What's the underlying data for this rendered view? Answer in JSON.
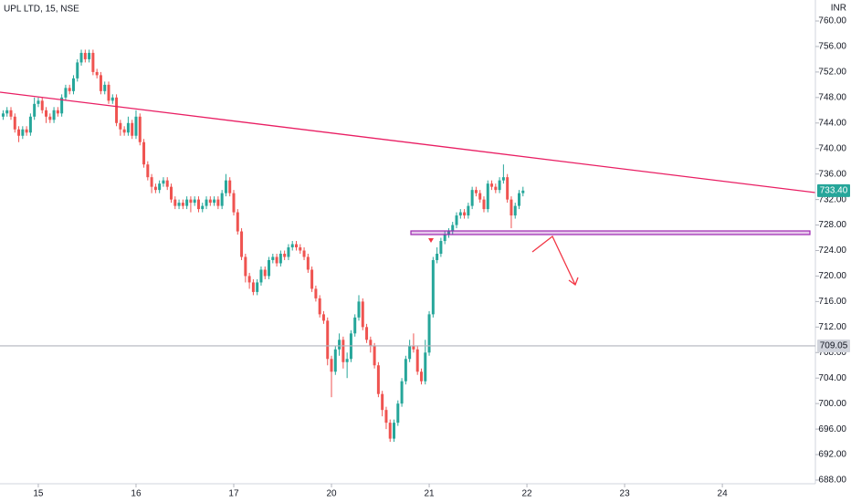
{
  "chart_data": {
    "type": "candlestick",
    "title": "UPL LTD, 15, NSE",
    "currency": "INR",
    "up_color": "#26a69a",
    "down_color": "#ef5350",
    "xlim": [
      -9.8,
      198.8
    ],
    "xticks": [
      {
        "value": 0,
        "label": "15"
      },
      {
        "value": 25,
        "label": "16"
      },
      {
        "value": 50,
        "label": "17"
      },
      {
        "value": 75,
        "label": "20"
      },
      {
        "value": 100,
        "label": "21"
      },
      {
        "value": 125,
        "label": "22"
      },
      {
        "value": 150,
        "label": "23"
      },
      {
        "value": 175,
        "label": "24"
      }
    ],
    "ylim": [
      688,
      760
    ],
    "yticks": [
      {
        "value": 688,
        "label": "688.00"
      },
      {
        "value": 692,
        "label": "692.00"
      },
      {
        "value": 696,
        "label": "696.00"
      },
      {
        "value": 700,
        "label": "700.00"
      },
      {
        "value": 704,
        "label": "704.00"
      },
      {
        "value": 708,
        "label": "708.00"
      },
      {
        "value": 712,
        "label": "712.00"
      },
      {
        "value": 716,
        "label": "716.00"
      },
      {
        "value": 720,
        "label": "720.00"
      },
      {
        "value": 724,
        "label": "724.00"
      },
      {
        "value": 728,
        "label": "728.00"
      },
      {
        "value": 732,
        "label": "732.00"
      },
      {
        "value": 736,
        "label": "736.00"
      },
      {
        "value": 740,
        "label": "740.00"
      },
      {
        "value": 744,
        "label": "744.00"
      },
      {
        "value": 748,
        "label": "748.00"
      },
      {
        "value": 752,
        "label": "752.00"
      },
      {
        "value": 756,
        "label": "756.00"
      },
      {
        "value": 760,
        "label": "760.00"
      }
    ],
    "last_price": {
      "value": 733.4,
      "label": "733.40"
    },
    "horizontal_line": {
      "value": 709.05,
      "label": "709.05"
    },
    "x": [
      -9,
      -8,
      -7,
      -6,
      -5,
      -4,
      -3,
      -2,
      -1,
      0,
      1,
      2,
      3,
      4,
      5,
      6,
      7,
      8,
      9,
      10,
      11,
      12,
      13,
      14,
      15,
      16,
      17,
      18,
      19,
      20,
      21,
      22,
      23,
      24,
      25,
      26,
      27,
      28,
      29,
      30,
      31,
      32,
      33,
      34,
      35,
      36,
      37,
      38,
      39,
      40,
      41,
      42,
      43,
      44,
      45,
      46,
      47,
      48,
      49,
      50,
      51,
      52,
      53,
      54,
      55,
      56,
      57,
      58,
      59,
      60,
      61,
      62,
      63,
      64,
      65,
      66,
      67,
      68,
      69,
      70,
      71,
      72,
      73,
      74,
      75,
      76,
      77,
      78,
      79,
      80,
      81,
      82,
      83,
      84,
      85,
      86,
      87,
      88,
      89,
      90,
      91,
      92,
      93,
      94,
      95,
      96,
      97,
      98,
      99,
      100,
      101,
      102,
      103,
      104,
      105,
      106,
      107,
      108,
      109,
      110,
      111,
      112,
      113,
      114,
      115,
      116,
      117,
      118,
      119,
      120,
      121,
      122,
      123,
      124
    ],
    "open": [
      745,
      745.5,
      746,
      745,
      743,
      742,
      743,
      742.5,
      745,
      747,
      747.5,
      746,
      745,
      744.5,
      746,
      745.5,
      748,
      749.5,
      749,
      751,
      753.5,
      755,
      754,
      755,
      752,
      751.5,
      749,
      750,
      747.5,
      748,
      744,
      743,
      742.5,
      744,
      742,
      745,
      741,
      737.5,
      735.5,
      734,
      733.5,
      734.5,
      735,
      734,
      732,
      731,
      731.5,
      731,
      732,
      731.5,
      732,
      730.5,
      731,
      732,
      731.5,
      732,
      731,
      733,
      735,
      733,
      730,
      727,
      723,
      720,
      719,
      717.5,
      719,
      721,
      720,
      722.5,
      723,
      722,
      723.5,
      723,
      724.5,
      725,
      724.5,
      724,
      723,
      721,
      718,
      716.5,
      714,
      713,
      707,
      705,
      708.5,
      710,
      706.5,
      707,
      711,
      713.5,
      716,
      712,
      710,
      709,
      706,
      701.5,
      699,
      697,
      694.5,
      697,
      700,
      703.5,
      707,
      709,
      708.5,
      705,
      703.5,
      708,
      714,
      722.5,
      723.5,
      725.5,
      726.5,
      727,
      728,
      729.5,
      730,
      729.5,
      731,
      733.5,
      733,
      732,
      730.5,
      734.5,
      734,
      733.5,
      735,
      735.5,
      732,
      729.5,
      731,
      733
    ],
    "high": [
      746,
      746.5,
      746.5,
      745.5,
      743.5,
      743.5,
      743.5,
      745.5,
      748,
      748,
      748,
      746.5,
      745.5,
      746.5,
      746.5,
      748.5,
      750,
      750,
      751.5,
      754,
      755.5,
      755.5,
      755.5,
      755.5,
      752.5,
      752,
      750.5,
      750.5,
      748.5,
      748.5,
      744.5,
      743.5,
      745,
      744.5,
      746,
      745.5,
      741.5,
      738,
      736,
      734.5,
      735,
      735.5,
      735.5,
      734.5,
      732.5,
      732,
      732,
      732.5,
      732.5,
      732.5,
      732.5,
      731.5,
      732.5,
      732.5,
      732.5,
      732.5,
      733.5,
      736,
      735.5,
      733.5,
      730.5,
      727.5,
      723.5,
      720.5,
      719.5,
      719.5,
      721.5,
      721.5,
      723,
      723.5,
      723.5,
      724,
      724,
      725,
      725.5,
      725.5,
      725,
      724.5,
      723.5,
      721.5,
      718.5,
      717,
      714.5,
      713.5,
      707.5,
      709,
      711,
      710.5,
      708,
      711.5,
      714,
      717,
      716.5,
      712.5,
      710.5,
      709.5,
      706.5,
      702,
      699.5,
      697.5,
      697.5,
      700.5,
      704,
      707.5,
      710,
      711,
      709,
      705.5,
      710,
      714.5,
      723,
      724.5,
      726,
      727,
      727.5,
      728.5,
      730,
      730.5,
      730.5,
      731.5,
      734,
      734,
      733.5,
      732.5,
      735,
      735,
      734.5,
      735.5,
      737.5,
      736,
      732.5,
      731.5,
      733.5,
      734
    ],
    "low": [
      744.5,
      745,
      744.5,
      742.5,
      741,
      741.5,
      742,
      742,
      744.5,
      746.5,
      745.5,
      744,
      744,
      744,
      745,
      745,
      747.5,
      748.5,
      748.5,
      750.5,
      753,
      753.5,
      753.5,
      751.5,
      751,
      748.5,
      748.5,
      747,
      747,
      743.5,
      742,
      742,
      742,
      741.5,
      741.5,
      740.5,
      737,
      735,
      733,
      733,
      733,
      734,
      733.5,
      731.5,
      730.5,
      730.5,
      730.5,
      730.5,
      730,
      731,
      730,
      730,
      730.5,
      731,
      731,
      730.5,
      730.5,
      732.5,
      732.5,
      729.5,
      726.5,
      722.5,
      719,
      718,
      717,
      717,
      718.5,
      719.5,
      719.5,
      722,
      721.5,
      721.5,
      722.5,
      722.5,
      724,
      724,
      723.5,
      722.5,
      720.5,
      717.5,
      716,
      713.5,
      712.5,
      706,
      701,
      704.5,
      707.5,
      705.5,
      704,
      706.5,
      710.5,
      713,
      711.5,
      709.5,
      708,
      705.5,
      701,
      698,
      696,
      694,
      694,
      696.5,
      699.5,
      703,
      706.5,
      708,
      704.5,
      703,
      703,
      707.5,
      713.5,
      722,
      723,
      725,
      726,
      726.5,
      727.5,
      729,
      729,
      729,
      730.5,
      732.5,
      731.5,
      730,
      730,
      733.5,
      733,
      733,
      734.5,
      731.5,
      727.5,
      729,
      730.5,
      732.5
    ],
    "close": [
      745.5,
      746,
      745,
      743,
      742,
      743,
      742.5,
      745,
      747,
      747.5,
      746,
      745,
      744.5,
      746,
      745.5,
      748,
      749.5,
      749,
      751,
      753.5,
      755,
      754,
      755,
      752,
      751.5,
      749,
      750,
      747.5,
      748,
      744,
      743,
      742.5,
      744,
      742,
      745,
      741,
      737.5,
      735.5,
      734,
      733.5,
      734.5,
      735,
      734,
      732,
      731,
      731.5,
      731,
      732,
      731.5,
      732,
      730.5,
      731,
      732,
      731.5,
      732,
      731,
      733,
      735,
      733,
      730,
      727,
      723,
      720,
      719,
      717.5,
      719,
      721,
      720,
      722.5,
      723,
      722,
      723.5,
      723,
      724.5,
      725,
      724.5,
      724,
      723,
      721,
      718,
      716.5,
      714,
      713,
      707,
      705,
      708.5,
      710,
      706.5,
      707,
      711,
      713.5,
      716,
      712,
      710,
      709,
      706,
      701.5,
      699,
      697,
      694.5,
      697,
      700,
      703.5,
      707,
      709,
      708.5,
      705,
      703.5,
      708,
      714,
      722.5,
      723.5,
      725.5,
      726.5,
      727,
      728,
      729.5,
      730,
      729.5,
      731,
      733.5,
      733,
      732,
      730.5,
      734.5,
      734,
      733.5,
      735,
      735.5,
      732,
      729.5,
      731,
      733,
      733.4
    ]
  }
}
